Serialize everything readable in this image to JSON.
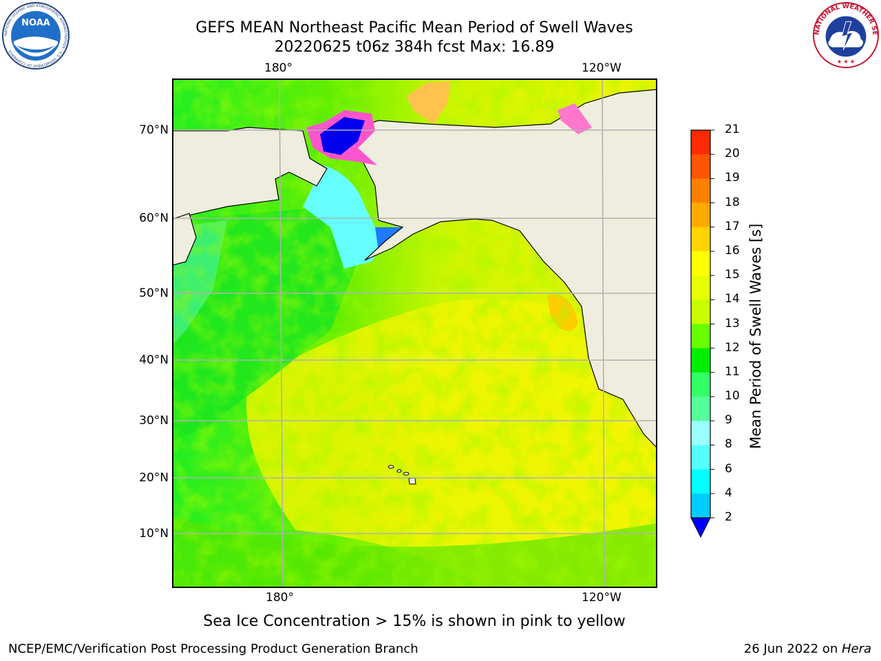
{
  "title_line1": "GEFS MEAN Northeast Pacific Mean Period of Swell Waves",
  "title_line2": "20220625 t06z 384h fcst   Max: 16.89",
  "lon_labels": [
    "180°",
    "120°W"
  ],
  "lat_labels": [
    "70°N",
    "60°N",
    "50°N",
    "40°N",
    "30°N",
    "20°N",
    "10°N"
  ],
  "colorbar": {
    "title": "Mean Period of Swell Waves [s]",
    "ticks": [
      "21",
      "20",
      "19",
      "18",
      "17",
      "16",
      "15",
      "14",
      "13",
      "12",
      "11",
      "10",
      "9",
      "8",
      "6",
      "4",
      "2"
    ],
    "colors": [
      "#ff0000",
      "#ff2a00",
      "#ff5500",
      "#ff8000",
      "#ffaa00",
      "#ffd400",
      "#ffff00",
      "#e6ff00",
      "#c8ff00",
      "#66ff00",
      "#00ee00",
      "#33ff66",
      "#55ff99",
      "#99ffff",
      "#55ffff",
      "#00ffff",
      "#00ccff",
      "#0066ff"
    ],
    "under_color": "#0000ff"
  },
  "caption": "Sea Ice Concentration > 15% is shown in pink to yellow",
  "footer_left": "NCEP/EMC/Verification Post Processing Product Generation Branch",
  "footer_right_date": "26 Jun 2022 on ",
  "footer_right_host": "Hera",
  "logos": {
    "noaa_text": "NOAA",
    "noaa_ring": "NATIONAL OCEANIC AND ATMOSPHERIC ADMINISTRATION · U.S. DEPARTMENT OF COMMERCE",
    "nws_ring": "NATIONAL WEATHER SERVICE"
  },
  "colors": {
    "land": "#efedde",
    "gridline": "#b0b0b0"
  }
}
